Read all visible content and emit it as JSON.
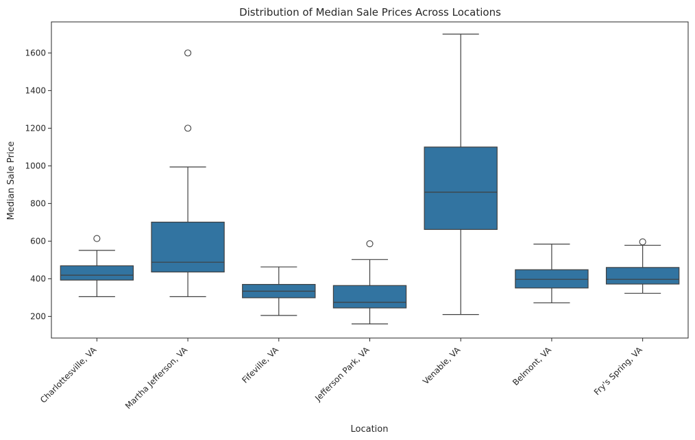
{
  "chart_data": {
    "type": "box",
    "title": "Distribution of Median Sale Prices Across Locations",
    "xlabel": "Location",
    "ylabel": "Median Sale Price",
    "ylim": [
      85,
      1765
    ],
    "yticks": [
      200,
      400,
      600,
      800,
      1000,
      1200,
      1400,
      1600
    ],
    "grid": false,
    "box_color": "#3274a1",
    "line_color": "#3f3f3f",
    "categories": [
      "Charlottesville, VA",
      "Martha Jefferson, VA",
      "Fifeville, VA",
      "Jefferson Park, VA",
      "Venable, VA",
      "Belmont, VA",
      "Fry's Spring, VA"
    ],
    "boxes": [
      {
        "whisker_low": 305,
        "q1": 393,
        "median": 419,
        "q3": 469,
        "whisker_high": 551,
        "outliers": [
          614
        ]
      },
      {
        "whisker_low": 305,
        "q1": 436,
        "median": 488,
        "q3": 701,
        "whisker_high": 994,
        "outliers": [
          1200,
          1600
        ]
      },
      {
        "whisker_low": 205,
        "q1": 299,
        "median": 334,
        "q3": 370,
        "whisker_high": 463,
        "outliers": []
      },
      {
        "whisker_low": 160,
        "q1": 245,
        "median": 275,
        "q3": 364,
        "whisker_high": 502,
        "outliers": [
          586
        ]
      },
      {
        "whisker_low": 210,
        "q1": 662,
        "median": 860,
        "q3": 1100,
        "whisker_high": 1700,
        "outliers": []
      },
      {
        "whisker_low": 272,
        "q1": 351,
        "median": 397,
        "q3": 448,
        "whisker_high": 584,
        "outliers": []
      },
      {
        "whisker_low": 323,
        "q1": 372,
        "median": 397,
        "q3": 460,
        "whisker_high": 578,
        "outliers": [
          596
        ]
      }
    ]
  }
}
